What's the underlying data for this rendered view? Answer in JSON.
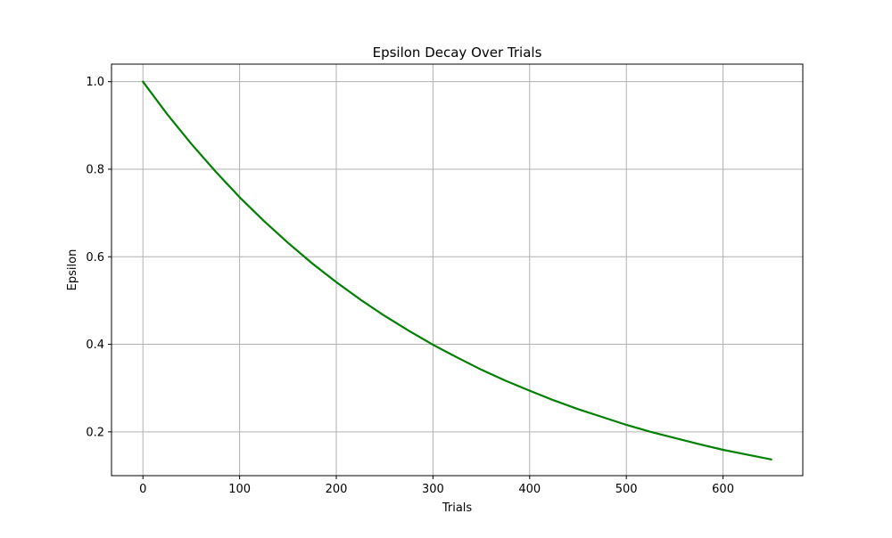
{
  "chart_data": {
    "type": "line",
    "title": "Epsilon Decay Over Trials",
    "xlabel": "Trials",
    "ylabel": "Epsilon",
    "xlim": [
      -32.5,
      682.5
    ],
    "ylim": [
      0.1,
      1.04
    ],
    "xticks": [
      0,
      100,
      200,
      300,
      400,
      500,
      600
    ],
    "yticks": [
      0.2,
      0.4,
      0.6,
      0.8,
      1.0
    ],
    "xtick_labels": [
      "0",
      "100",
      "200",
      "300",
      "400",
      "500",
      "600"
    ],
    "ytick_labels": [
      "0.2",
      "0.4",
      "0.6",
      "0.8",
      "1.0"
    ],
    "grid": true,
    "series": [
      {
        "color": "#008000",
        "x": [
          0,
          25,
          50,
          75,
          100,
          125,
          150,
          175,
          200,
          225,
          250,
          275,
          300,
          325,
          350,
          375,
          400,
          425,
          450,
          475,
          500,
          525,
          550,
          575,
          600,
          625,
          650
        ],
        "y": [
          1.0,
          0.926,
          0.858,
          0.795,
          0.736,
          0.682,
          0.632,
          0.585,
          0.542,
          0.502,
          0.465,
          0.431,
          0.399,
          0.37,
          0.342,
          0.317,
          0.294,
          0.272,
          0.252,
          0.234,
          0.216,
          0.2,
          0.186,
          0.172,
          0.159,
          0.148,
          0.137
        ]
      }
    ]
  }
}
